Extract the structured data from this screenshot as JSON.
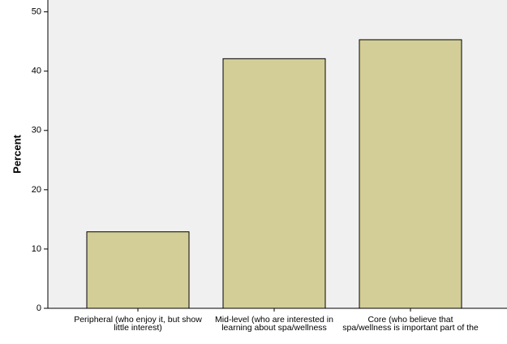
{
  "chart_data": {
    "type": "bar",
    "categories": [
      "Peripheral (who enjoy it, but show little interest)",
      "Mid-level (who are interested in learning about spa/wellness",
      "Core (who believe that spa/wellness is important part of the"
    ],
    "values": [
      12.9,
      42.1,
      45.3
    ],
    "color": "#d3ce97",
    "ylabel": "Percent",
    "ylim": [
      0,
      52
    ],
    "yticks": [
      0,
      10,
      20,
      30,
      40,
      50
    ],
    "grid": false
  }
}
